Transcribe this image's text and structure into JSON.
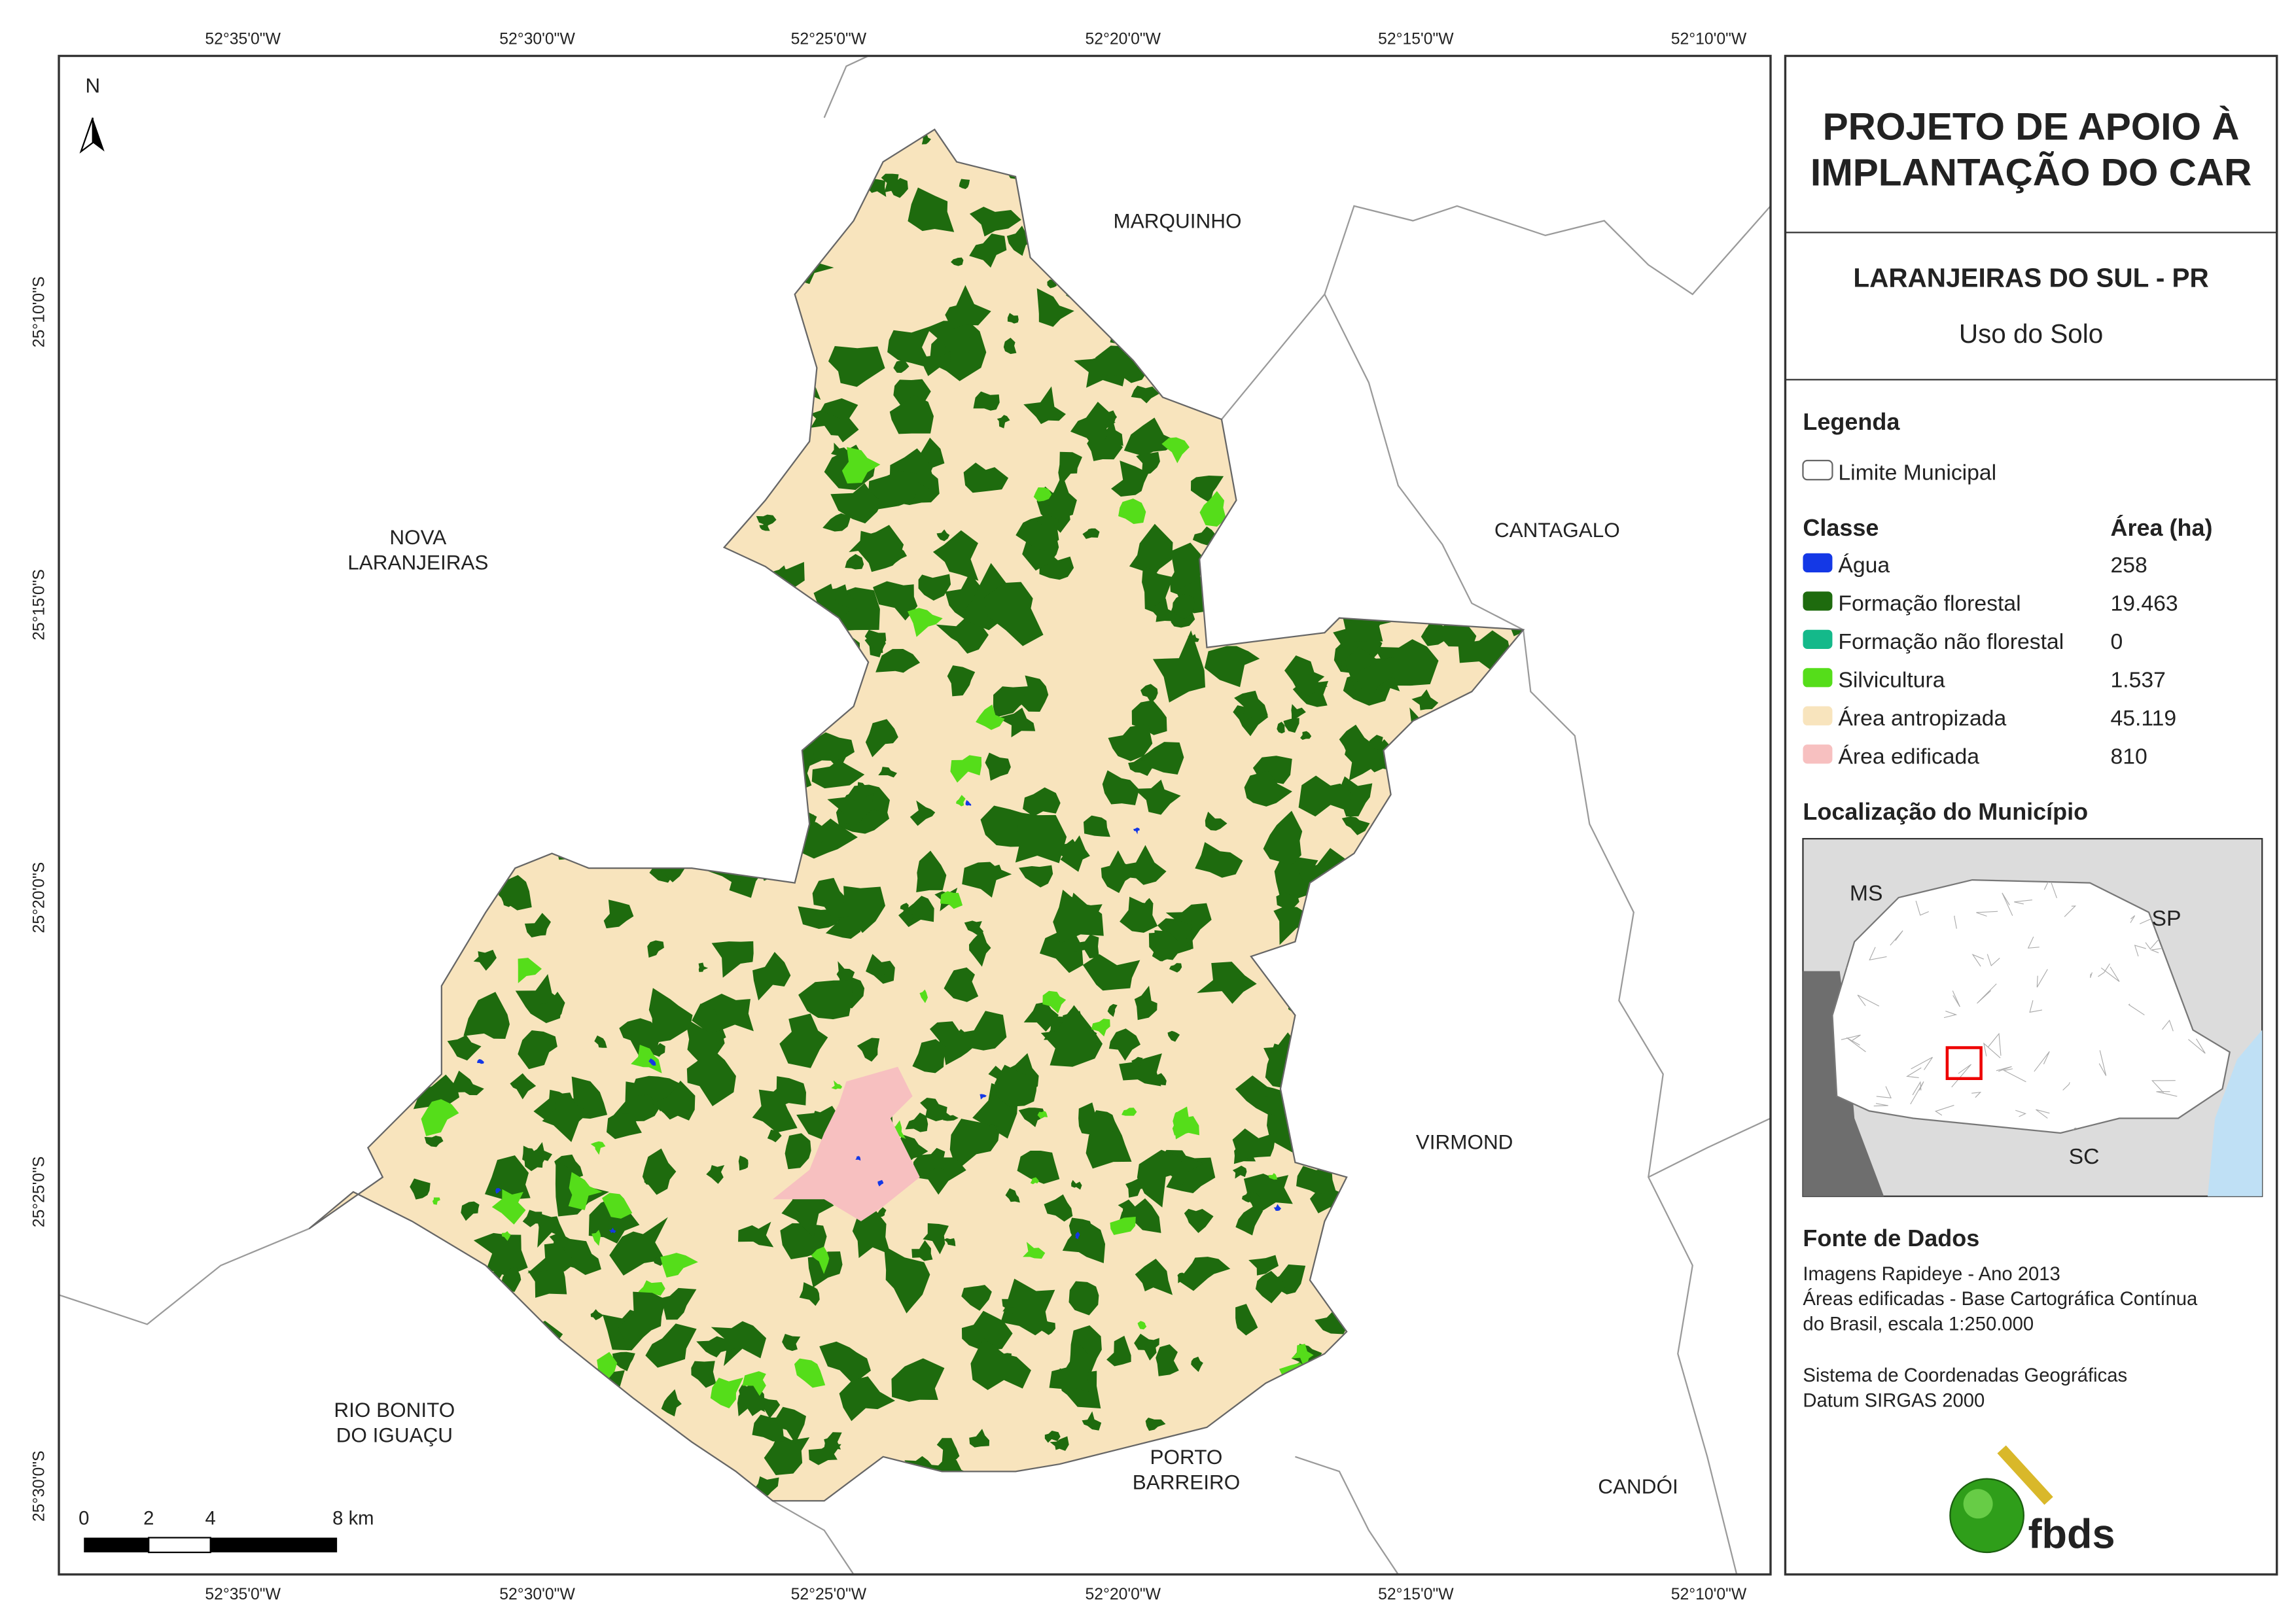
{
  "map": {
    "north": "N",
    "longitudes": [
      "52°35'0\"W",
      "52°30'0\"W",
      "52°25'0\"W",
      "52°20'0\"W",
      "52°15'0\"W",
      "52°10'0\"W"
    ],
    "latitudes": [
      "25°10'0\"S",
      "25°15'0\"S",
      "25°20'0\"S",
      "25°25'0\"S",
      "25°30'0\"S"
    ],
    "places": [
      {
        "lines": [
          "NOVA",
          "LARANJEIRAS"
        ]
      },
      {
        "lines": [
          "MARQUINHO"
        ]
      },
      {
        "lines": [
          "CANTAGALO"
        ]
      },
      {
        "lines": [
          "VIRMOND"
        ]
      },
      {
        "lines": [
          "RIO BONITO",
          "DO IGUAÇU"
        ]
      },
      {
        "lines": [
          "PORTO",
          "BARREIRO"
        ]
      },
      {
        "lines": [
          "CANDÓI"
        ]
      }
    ],
    "scale_bar": [
      "0",
      "2",
      "4",
      "8 km"
    ]
  },
  "panel": {
    "title": [
      "PROJETO DE APOIO À",
      "IMPLANTAÇÃO DO CAR"
    ],
    "municipality": "LARANJEIRAS DO SUL - PR",
    "theme": "Uso do Solo",
    "legend": {
      "heading": "Legenda",
      "boundary": "Limite Municipal",
      "class_header": "Classe",
      "area_header": "Área (ha)",
      "classes": [
        {
          "name": "Água",
          "area": "258",
          "color": "#1438e6"
        },
        {
          "name": "Formação florestal",
          "area": "19.463",
          "color": "#1e6b0e"
        },
        {
          "name": "Formação não florestal",
          "area": "0",
          "color": "#14b98a"
        },
        {
          "name": "Silvicultura",
          "area": "1.537",
          "color": "#55dd1a"
        },
        {
          "name": "Área antropizada",
          "area": "45.119",
          "color": "#f8e4bd"
        },
        {
          "name": "Área edificada",
          "area": "810",
          "color": "#f7c0c0"
        }
      ]
    },
    "location": {
      "heading": "Localização do Município",
      "labels": [
        "MS",
        "SP",
        "SC"
      ]
    },
    "sources": {
      "heading": "Fonte de Dados",
      "lines": [
        "Imagens Rapideye - Ano 2013",
        "Áreas edificadas - Base Cartográfica Contínua",
        "do Brasil, escala 1:250.000",
        "Sistema de Coordenadas Geográficas",
        "Datum SIRGAS 2000"
      ]
    },
    "logo": "fbds"
  }
}
